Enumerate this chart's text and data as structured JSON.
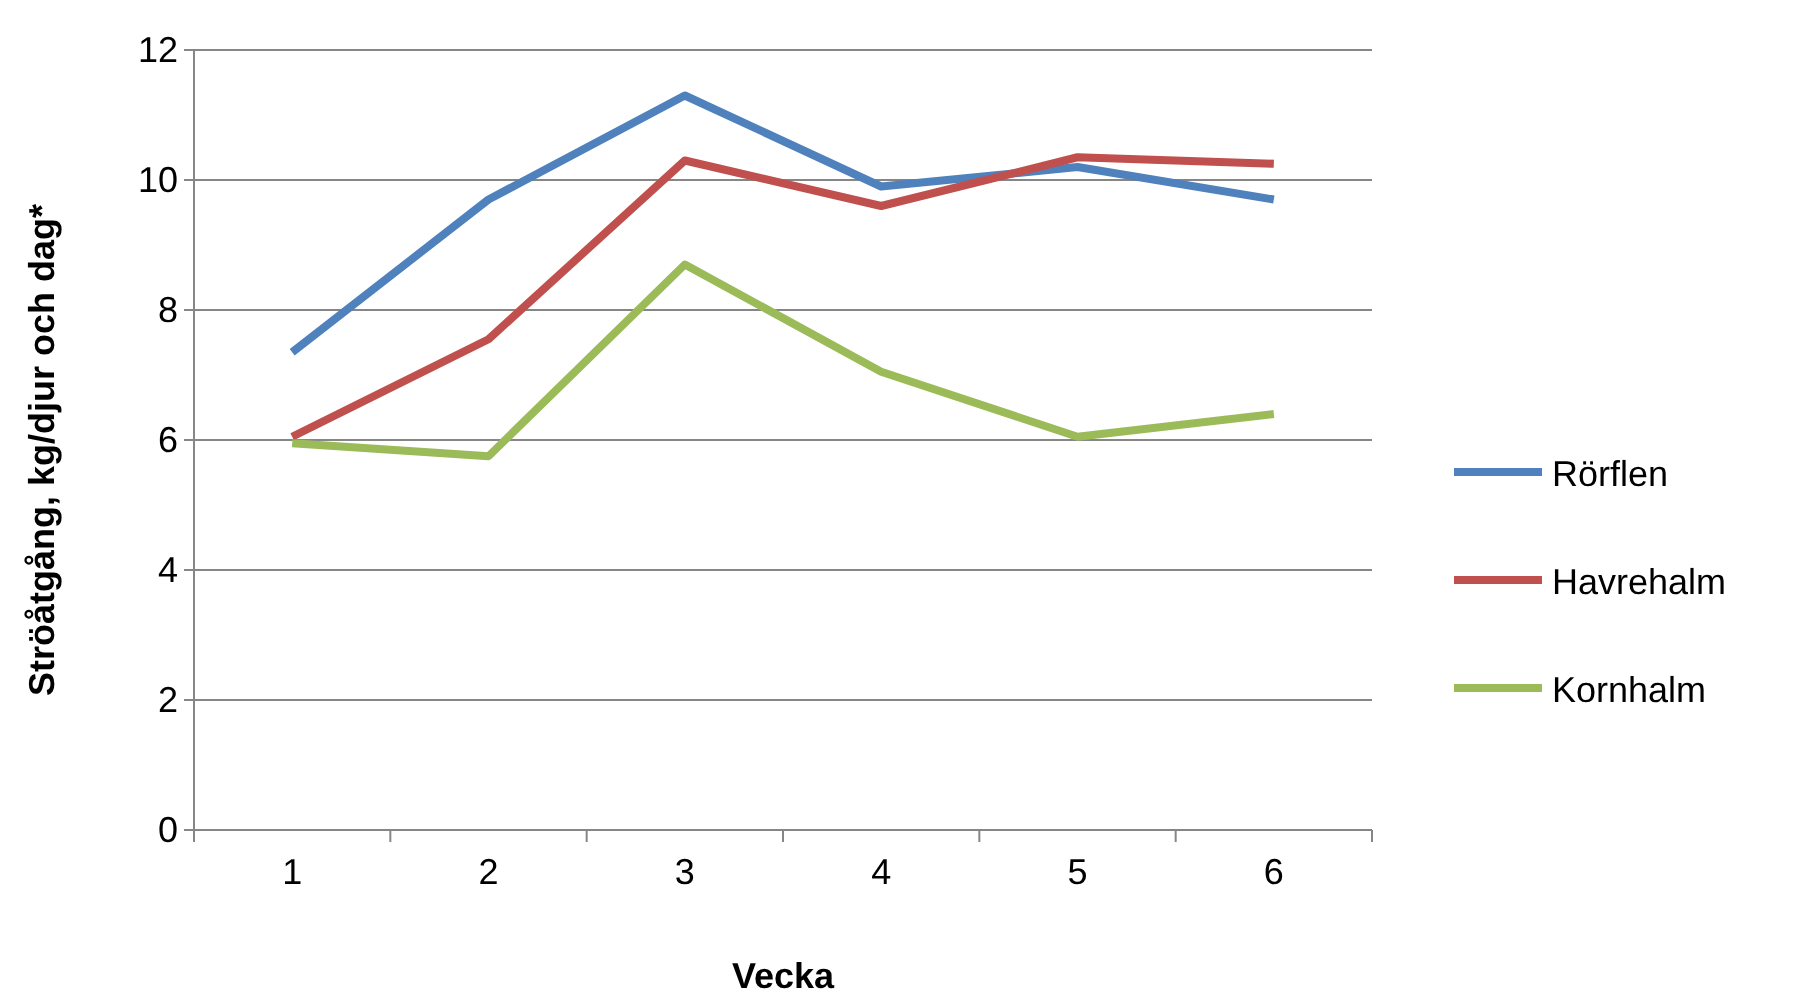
{
  "chart_data": {
    "type": "line",
    "xlabel": "Vecka",
    "ylabel": "Ströåtgång, kg/djur och dag*",
    "categories": [
      "1",
      "2",
      "3",
      "4",
      "5",
      "6"
    ],
    "series": [
      {
        "name": "Rörflen",
        "color": "#4f81bd",
        "values": [
          7.35,
          9.7,
          11.3,
          9.9,
          10.2,
          9.7
        ]
      },
      {
        "name": "Havrehalm",
        "color": "#c0504d",
        "values": [
          6.05,
          7.55,
          10.3,
          9.6,
          10.35,
          10.25
        ]
      },
      {
        "name": "Kornhalm",
        "color": "#9bbb59",
        "values": [
          5.95,
          5.75,
          8.7,
          7.05,
          6.05,
          6.4
        ]
      }
    ],
    "ylim": [
      0,
      12
    ],
    "yticks": [
      0,
      2,
      4,
      6,
      8,
      10,
      12
    ],
    "grid": "y",
    "legend": "right",
    "marker": "none",
    "line_style": "solid"
  }
}
